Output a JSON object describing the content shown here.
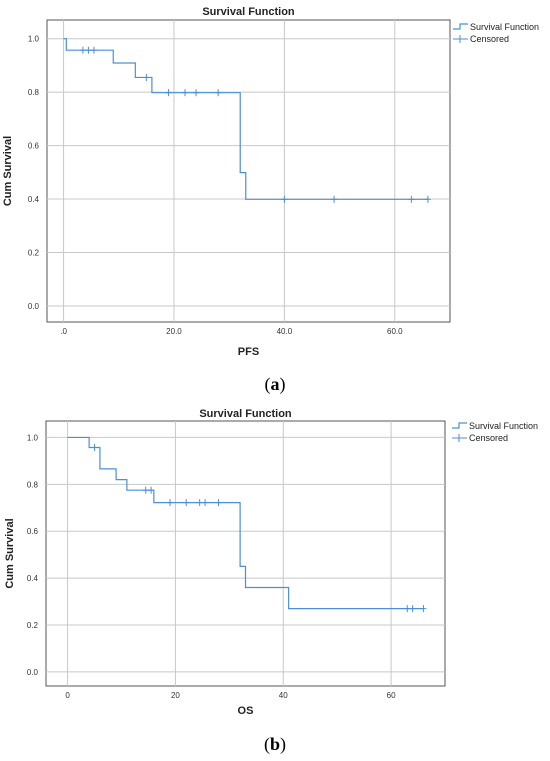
{
  "chart_data": [
    {
      "type": "line",
      "panel": "a",
      "title": "Survival Function",
      "xlabel": "PFS",
      "ylabel": "Cum Survival",
      "xlim": [
        -3,
        70
      ],
      "ylim": [
        -0.06,
        1.07
      ],
      "xticks": [
        0,
        20,
        40,
        60
      ],
      "xtick_labels": [
        ".0",
        "20.0",
        "40.0",
        "60.0"
      ],
      "yticks": [
        0,
        0.2,
        0.4,
        0.6,
        0.8,
        1.0
      ],
      "ytick_labels": [
        "0.0",
        "0.2",
        "0.4",
        "0.6",
        "0.8",
        "1.0"
      ],
      "grid": true,
      "legend_position": "top-right",
      "legend": [
        "Survival Function",
        "Censored"
      ],
      "series": [
        {
          "name": "Survival Function",
          "step_x": [
            0,
            0.5,
            9,
            13,
            16,
            32,
            33,
            66
          ],
          "step_y": [
            1.0,
            0.957,
            0.909,
            0.855,
            0.798,
            0.499,
            0.399,
            0.399
          ]
        },
        {
          "name": "Censored",
          "x": [
            3.5,
            4.5,
            5.5,
            15,
            19,
            22,
            24,
            28,
            40,
            49,
            63,
            66
          ],
          "y": [
            0.957,
            0.957,
            0.957,
            0.855,
            0.798,
            0.798,
            0.798,
            0.798,
            0.399,
            0.399,
            0.399,
            0.399
          ]
        }
      ],
      "color": "#4a90d9"
    },
    {
      "type": "line",
      "panel": "b",
      "title": "Survival Function",
      "xlabel": "OS",
      "ylabel": "Cum Survival",
      "xlim": [
        -4,
        70
      ],
      "ylim": [
        -0.06,
        1.07
      ],
      "xticks": [
        0,
        20,
        40,
        60
      ],
      "xtick_labels": [
        "0",
        "20",
        "40",
        "60"
      ],
      "yticks": [
        0,
        0.2,
        0.4,
        0.6,
        0.8,
        1.0
      ],
      "ytick_labels": [
        "0.0",
        "0.2",
        "0.4",
        "0.6",
        "0.8",
        "1.0"
      ],
      "grid": true,
      "legend_position": "top-right",
      "legend": [
        "Survival Function",
        "Censored"
      ],
      "series": [
        {
          "name": "Survival Function",
          "step_x": [
            0,
            4,
            6,
            9,
            11,
            16,
            32,
            33,
            41,
            66
          ],
          "step_y": [
            1.0,
            0.957,
            0.866,
            0.82,
            0.775,
            0.722,
            0.45,
            0.36,
            0.27,
            0.27
          ]
        },
        {
          "name": "Censored",
          "x": [
            5,
            14.5,
            15.5,
            19,
            22,
            24.5,
            25.5,
            28,
            63,
            64,
            66
          ],
          "y": [
            0.957,
            0.775,
            0.775,
            0.722,
            0.722,
            0.722,
            0.722,
            0.722,
            0.27,
            0.27,
            0.27
          ]
        }
      ],
      "color": "#4a90d9"
    }
  ],
  "captions": {
    "a": {
      "open": "(",
      "letter": "a",
      "close": ")"
    },
    "b": {
      "open": "(",
      "letter": "b",
      "close": ")"
    }
  }
}
